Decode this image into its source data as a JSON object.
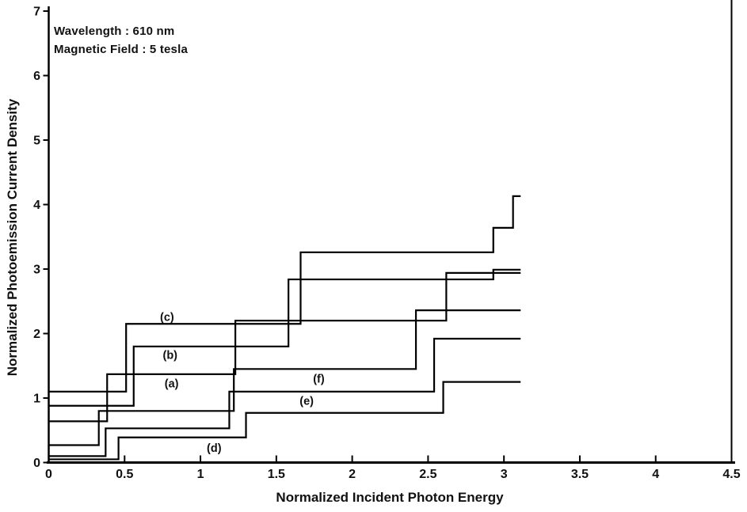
{
  "annotation": {
    "line1": "Wavelength : 610 nm",
    "line2": "Magnetic Field : 5 tesla"
  },
  "chart_data": {
    "type": "line",
    "subtype": "staircase-step-functions",
    "title": "",
    "xlabel": "Normalized Incident Photon Energy",
    "ylabel": "Normalized Photoemission Current Density",
    "xlim": [
      0,
      4.5
    ],
    "ylim": [
      0,
      7
    ],
    "xticks": [
      0,
      0.5,
      1,
      1.5,
      2,
      2.5,
      3,
      3.5,
      4,
      4.5
    ],
    "xtick_labels": [
      "0",
      "0.5",
      "1",
      "1.5",
      "2",
      "2.5",
      "3",
      "3.5",
      "4",
      "4.5"
    ],
    "yticks": [
      0,
      1,
      2,
      3,
      4,
      5,
      6,
      7
    ],
    "ytick_labels": [
      "0",
      "1",
      "2",
      "3",
      "4",
      "5",
      "6",
      "7"
    ],
    "grid": false,
    "legend_position": "inline-curve-labels",
    "line_color": "#000000",
    "series": [
      {
        "name": "(a)",
        "levels": [
          0.64,
          1.37,
          2.2,
          2.94
        ],
        "step_x": [
          0.385,
          1.23,
          2.62
        ],
        "x_end": 3.11,
        "label": {
          "text": "(a)",
          "x": 0.81,
          "y": 1.23
        }
      },
      {
        "name": "(b)",
        "levels": [
          0.88,
          1.8,
          2.84,
          2.99
        ],
        "step_x": [
          0.56,
          1.58,
          2.93
        ],
        "x_end": 3.11,
        "label": {
          "text": "(b)",
          "x": 0.8,
          "y": 1.67
        }
      },
      {
        "name": "(c)",
        "levels": [
          1.1,
          2.15,
          3.26,
          3.64,
          4.13
        ],
        "step_x": [
          0.51,
          1.66,
          2.93,
          3.06
        ],
        "x_end": 3.11,
        "label": {
          "text": "(c)",
          "x": 0.78,
          "y": 2.26
        }
      },
      {
        "name": "(d)",
        "levels": [
          0.05,
          0.39,
          0.77,
          1.25
        ],
        "step_x": [
          0.46,
          1.3,
          2.6
        ],
        "x_end": 3.11,
        "label": {
          "text": "(d)",
          "x": 1.09,
          "y": 0.23
        }
      },
      {
        "name": "(e)",
        "levels": [
          0.1,
          0.53,
          1.1,
          1.92
        ],
        "step_x": [
          0.375,
          1.19,
          2.54
        ],
        "x_end": 3.11,
        "label": {
          "text": "(e)",
          "x": 1.7,
          "y": 0.96
        }
      },
      {
        "name": "(f)",
        "levels": [
          0.27,
          0.8,
          1.45,
          2.36
        ],
        "step_x": [
          0.33,
          1.22,
          2.42
        ],
        "x_end": 3.11,
        "label": {
          "text": "(f)",
          "x": 1.78,
          "y": 1.3
        }
      }
    ]
  }
}
